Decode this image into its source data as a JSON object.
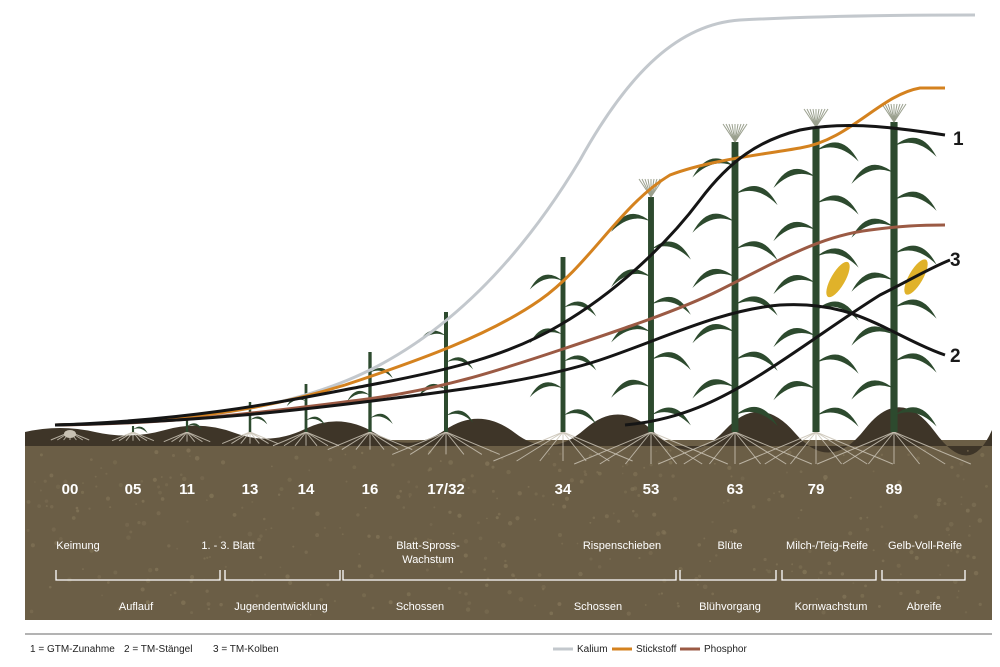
{
  "bbch_codes": [
    "00",
    "05",
    "11",
    "13",
    "14",
    "16",
    "17/32",
    "34",
    "53",
    "63",
    "79",
    "89"
  ],
  "stages_top": [
    {
      "lines": [
        "Keimung"
      ]
    },
    {
      "lines": [
        "1. - 3. Blatt"
      ]
    },
    {
      "lines": [
        "Blatt-Spross-",
        "Wachstum"
      ]
    },
    {
      "lines": [
        "Rispenschieben"
      ]
    },
    {
      "lines": [
        "Blüte"
      ]
    },
    {
      "lines": [
        "Milch-/Teig-Reife"
      ]
    },
    {
      "lines": [
        "Gelb-Voll-Reife"
      ]
    }
  ],
  "stages_bottom": [
    "Auflauf",
    "Jugendentwicklung",
    "Schossen",
    "Schossen",
    "Blühvorgang",
    "Kornwachstum",
    "Abreife"
  ],
  "curve_labels": [
    "1",
    "2",
    "3"
  ],
  "legend_left": [
    "1 = GTM-Zunahme",
    "2 = TM-Stängel",
    "3 = TM-Kolben"
  ],
  "legend_right": [
    {
      "label": "Kalium",
      "color": "#c3c8cd"
    },
    {
      "label": "Stickstoff",
      "color": "#d4821f"
    },
    {
      "label": "Phosphor",
      "color": "#9b5a44"
    }
  ],
  "colors": {
    "soil": "#6b5e46",
    "soil_dark": "#3e3528",
    "plant": "#2d4a2e",
    "black_curves": "#151515",
    "cob": "#e0b22a"
  }
}
